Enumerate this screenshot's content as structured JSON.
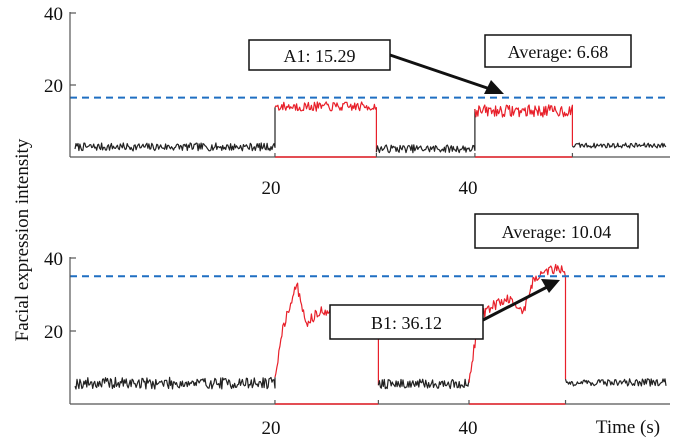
{
  "chart_data": [
    {
      "type": "line",
      "panel": "top",
      "title": "",
      "xlabel": "",
      "ylabel": "Facial expression intensity",
      "xlim": [
        0,
        60
      ],
      "ylim": [
        0,
        40
      ],
      "x_ticks": [
        20,
        40
      ],
      "x_tick_labels": [
        "20",
        "40"
      ],
      "y_ticks": [
        20,
        40
      ],
      "y_tick_labels": [
        "20",
        "40"
      ],
      "grid": false,
      "reference_line": {
        "y": 16.5,
        "style": "dashed",
        "color": "#1f6fc2"
      },
      "highlight_intervals": [
        [
          20.3,
          30.6
        ],
        [
          40.6,
          50.5
        ]
      ],
      "series": [
        {
          "color": "#222222",
          "segments": [
            {
              "x_start": 0,
              "x_end": 20.3,
              "base": 2.8,
              "amp": 1.1
            },
            {
              "x_start": 30.6,
              "x_end": 40.6,
              "base": 2.3,
              "amp": 1.1
            },
            {
              "x_start": 50.5,
              "x_end": 60,
              "base": 3.2,
              "amp": 0.7
            }
          ]
        },
        {
          "color": "#e8202a",
          "segments": [
            {
              "x_start": 20.3,
              "x_end": 30.6,
              "base": 14.0,
              "amp": 1.3
            },
            {
              "x_start": 40.6,
              "x_end": 50.5,
              "base": 12.8,
              "amp": 1.7
            }
          ]
        }
      ],
      "annotations": [
        {
          "label": "A1: 15.29",
          "x": 40.8,
          "y": 16.5
        },
        {
          "label": "Average: 6.68"
        }
      ]
    },
    {
      "type": "line",
      "panel": "bottom",
      "title": "",
      "xlabel": "Time (s)",
      "ylabel": "Facial expression intensity",
      "xlim": [
        0,
        60
      ],
      "ylim": [
        0,
        40
      ],
      "x_ticks": [
        20,
        40
      ],
      "x_tick_labels": [
        "20",
        "40"
      ],
      "y_ticks": [
        20,
        40
      ],
      "y_tick_labels": [
        "20",
        "40"
      ],
      "grid": false,
      "reference_line": {
        "y": 35,
        "style": "dashed",
        "color": "#1f6fc2"
      },
      "highlight_intervals": [
        [
          20.3,
          30.8
        ],
        [
          40.0,
          49.8
        ]
      ],
      "series": [
        {
          "color": "#222222",
          "segments": [
            {
              "x_start": 0,
              "x_end": 20.3,
              "base": 5.7,
              "amp": 1.6
            },
            {
              "x_start": 30.8,
              "x_end": 40.0,
              "base": 5.5,
              "amp": 1.3
            },
            {
              "x_start": 49.8,
              "x_end": 60,
              "base": 5.9,
              "amp": 1.0
            }
          ]
        },
        {
          "color": "#e8202a",
          "segments": [
            {
              "x_start": 20.3,
              "x_end": 30.8,
              "knots": [
                [
                  20.3,
                  7
                ],
                [
                  21,
                  20
                ],
                [
                  22.5,
                  33
                ],
                [
                  23.5,
                  22
                ],
                [
                  25,
                  26
                ],
                [
                  27,
                  23
                ],
                [
                  28.5,
                  25
                ],
                [
                  30.4,
                  26
                ],
                [
                  30.8,
                  22
                ]
              ],
              "amp": 1.4
            },
            {
              "x_start": 40.0,
              "x_end": 49.8,
              "knots": [
                [
                  40,
                  6
                ],
                [
                  41,
                  24
                ],
                [
                  42.5,
                  27
                ],
                [
                  44,
                  29
                ],
                [
                  45.5,
                  25
                ],
                [
                  46.5,
                  34
                ],
                [
                  48,
                  36.5
                ],
                [
                  49.2,
                  37.5
                ],
                [
                  49.8,
                  36
                ]
              ],
              "amp": 1.4
            }
          ]
        }
      ],
      "annotations": [
        {
          "label": "Average: 10.04"
        },
        {
          "label": "B1: 36.12",
          "x": 48.5,
          "y": 37.5
        }
      ]
    }
  ]
}
